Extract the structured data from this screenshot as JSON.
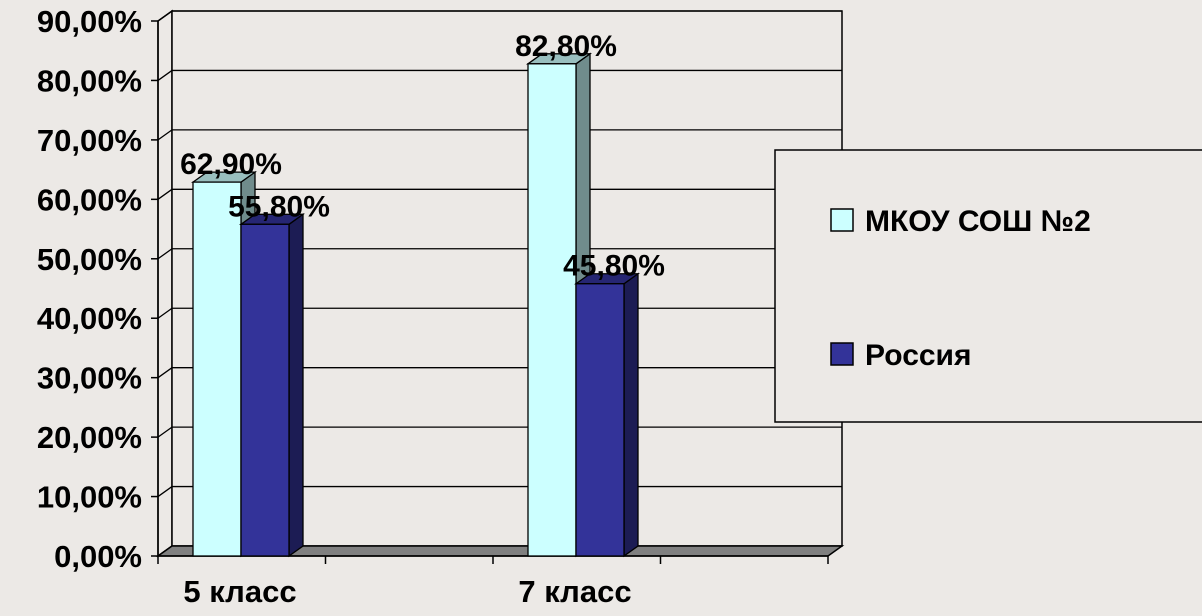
{
  "chart_data": {
    "type": "bar",
    "title": "",
    "xlabel": "",
    "ylabel": "",
    "categories": [
      "5 класс",
      "7 класс"
    ],
    "series": [
      {
        "name": "МКОУ СОШ №2",
        "values": [
          62.9,
          82.8
        ],
        "labels": [
          "62,90%",
          "82,80%"
        ],
        "color": "#CCFFFF"
      },
      {
        "name": "Россия",
        "values": [
          55.8,
          45.8
        ],
        "labels": [
          "55,80%",
          "45,80%"
        ],
        "color": "#333399"
      }
    ],
    "ylim": [
      0,
      90
    ],
    "yticks": [
      {
        "value": 0,
        "label": "0,00%"
      },
      {
        "value": 10,
        "label": "10,00%"
      },
      {
        "value": 20,
        "label": "20,00%"
      },
      {
        "value": 30,
        "label": "30,00%"
      },
      {
        "value": 40,
        "label": "40,00%"
      },
      {
        "value": 50,
        "label": "50,00%"
      },
      {
        "value": 60,
        "label": "60,00%"
      },
      {
        "value": 70,
        "label": "70,00%"
      },
      {
        "value": 80,
        "label": "80,00%"
      },
      {
        "value": 90,
        "label": "90,00%"
      }
    ],
    "grid": true,
    "legend_position": "right",
    "three_d": true
  }
}
